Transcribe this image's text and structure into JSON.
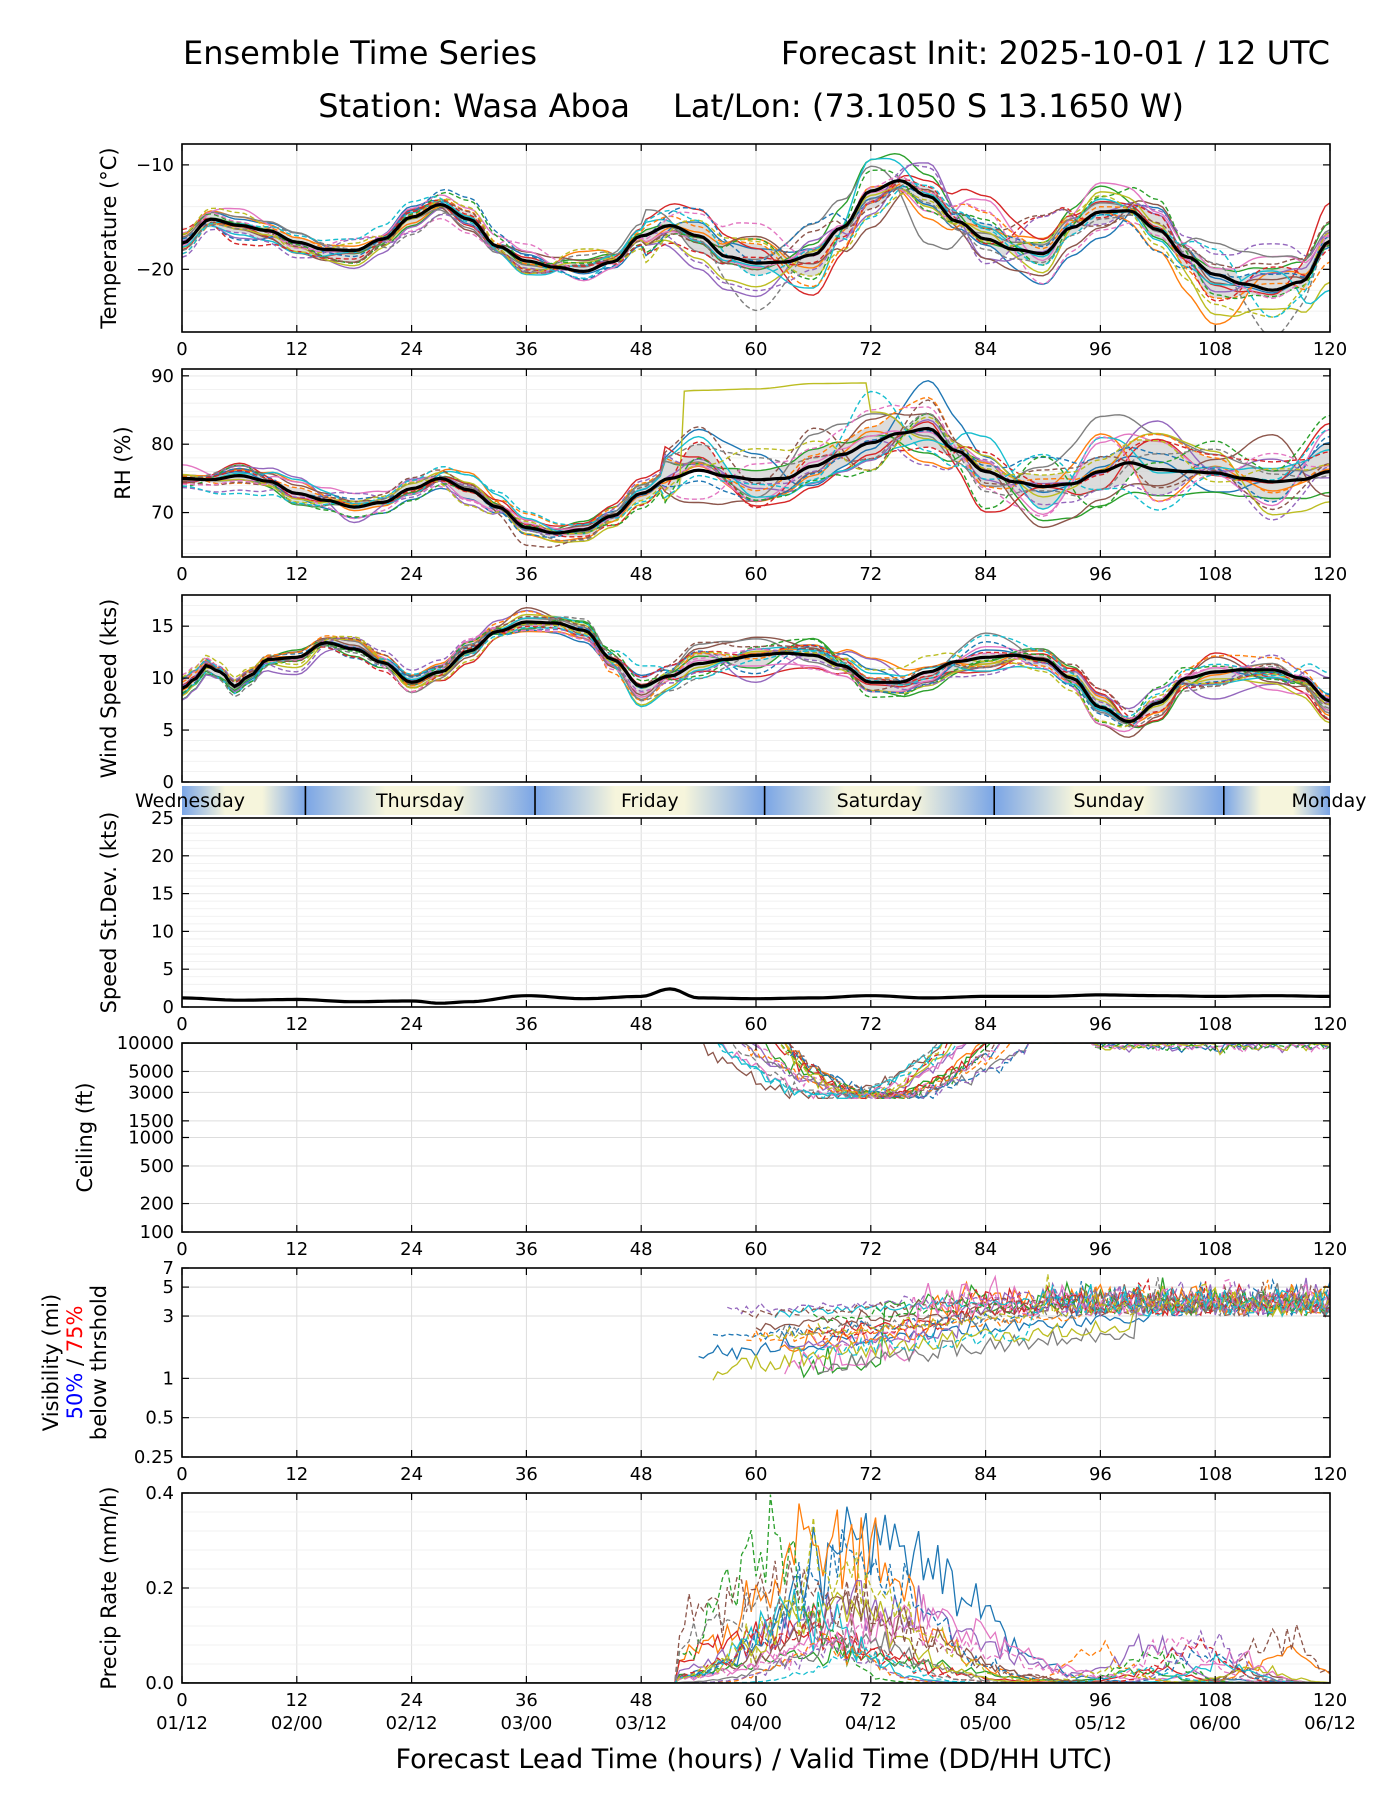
{
  "title": {
    "left": "Ensemble Time Series",
    "right": "Forecast Init: 2025-10-01 / 12 UTC",
    "station": "Station: Wasa Aboa",
    "latlon": "Lat/Lon: (73.1050 S 13.1650 W)"
  },
  "colors": {
    "members": [
      "#1f77b4",
      "#ff7f0e",
      "#2ca02c",
      "#d62728",
      "#9467bd",
      "#8c564b",
      "#e377c2",
      "#7f7f7f",
      "#bcbd22",
      "#17becf"
    ],
    "mean": "#000000",
    "spread": "#d0d0d0",
    "grid": "#dddddd",
    "day_blue": "#7aa5e6",
    "day_cream": "#f6f5dc",
    "vis50": "#0000ff",
    "vis75": "#ff0000"
  },
  "x_axis": {
    "label": "Forecast Lead Time (hours) / Valid Time (DD/HH UTC)",
    "range": [
      0,
      120
    ],
    "ticks": [
      0,
      12,
      24,
      36,
      48,
      60,
      72,
      84,
      96,
      108,
      120
    ],
    "valid_times": [
      "01/12",
      "02/00",
      "02/12",
      "03/00",
      "03/12",
      "04/00",
      "04/12",
      "05/00",
      "05/12",
      "06/00",
      "06/12"
    ]
  },
  "day_strip": {
    "days": [
      {
        "name": "Wednesday",
        "start": 0,
        "end": 12.9
      },
      {
        "name": "Thursday",
        "start": 12.9,
        "end": 36.9
      },
      {
        "name": "Friday",
        "start": 36.9,
        "end": 60.9
      },
      {
        "name": "Saturday",
        "start": 60.9,
        "end": 84.9
      },
      {
        "name": "Sunday",
        "start": 84.9,
        "end": 108.9
      },
      {
        "name": "Monday",
        "start": 108.9,
        "end": 120
      }
    ]
  },
  "chart_data": [
    {
      "id": "temperature",
      "type": "line",
      "ylabel": "Temperature (°C)",
      "scale": "linear",
      "ylim": [
        -26,
        -8
      ],
      "yticks": [
        -10,
        -20
      ],
      "ytick_labels": [
        "−10",
        "−20"
      ],
      "members": 20,
      "mean": {
        "x": [
          0,
          3,
          6,
          9,
          12,
          15,
          18,
          21,
          24,
          27,
          30,
          33,
          36,
          39,
          42,
          45,
          48,
          51,
          54,
          57,
          60,
          63,
          66,
          69,
          72,
          75,
          78,
          81,
          84,
          87,
          90,
          93,
          96,
          99,
          102,
          105,
          108,
          111,
          114,
          117,
          120
        ],
        "y": [
          -17.5,
          -15.2,
          -15.8,
          -16.3,
          -17.4,
          -18.1,
          -18.2,
          -17.1,
          -15.0,
          -13.8,
          -15.2,
          -17.8,
          -19.2,
          -19.8,
          -20.2,
          -19.3,
          -16.8,
          -15.8,
          -16.8,
          -18.8,
          -19.4,
          -19.3,
          -18.6,
          -16.0,
          -12.5,
          -11.5,
          -13.0,
          -15.4,
          -17.1,
          -18.1,
          -18.5,
          -16.0,
          -14.5,
          -14.4,
          -16.2,
          -18.8,
          -20.5,
          -21.4,
          -22.0,
          -21.2,
          -17.3
        ]
      }
    },
    {
      "id": "rh",
      "type": "line",
      "ylabel": "RH (%)",
      "scale": "linear",
      "ylim": [
        63.5,
        91
      ],
      "yticks": [
        70,
        80,
        90
      ],
      "members": 20,
      "mean": {
        "x": [
          0,
          3,
          6,
          9,
          12,
          15,
          18,
          21,
          24,
          27,
          30,
          33,
          36,
          39,
          42,
          45,
          48,
          51,
          54,
          57,
          60,
          63,
          66,
          69,
          72,
          75,
          78,
          81,
          84,
          87,
          90,
          93,
          96,
          99,
          102,
          105,
          108,
          111,
          114,
          117,
          120
        ],
        "y": [
          75.0,
          74.8,
          75.4,
          74.6,
          72.8,
          71.8,
          70.8,
          71.5,
          73.5,
          75.0,
          73.3,
          70.8,
          67.8,
          67.0,
          67.5,
          69.5,
          72.8,
          75.0,
          76.2,
          75.3,
          74.8,
          75.0,
          76.8,
          78.5,
          80.2,
          81.6,
          82.3,
          79.0,
          76.0,
          74.5,
          73.8,
          74.2,
          76.0,
          77.3,
          76.3,
          76.0,
          75.8,
          75.0,
          74.5,
          74.8,
          76.0
        ]
      }
    },
    {
      "id": "wind_speed",
      "type": "line",
      "ylabel": "Wind Speed (kts)",
      "scale": "linear",
      "ylim": [
        0,
        18
      ],
      "yticks": [
        0,
        5,
        10,
        15
      ],
      "members": 20,
      "mean": {
        "x": [
          0,
          1.5,
          2.5,
          4,
          5.5,
          7,
          9,
          12,
          15,
          18,
          21,
          24,
          27,
          30,
          33,
          36,
          39,
          42,
          45,
          48,
          51,
          54,
          57,
          60,
          63,
          66,
          69,
          72,
          75,
          78,
          81,
          84,
          87,
          90,
          93,
          96,
          99,
          102,
          105,
          108,
          111,
          114,
          117,
          120
        ],
        "y": [
          9.0,
          10.0,
          11.2,
          10.6,
          9.2,
          10.2,
          11.8,
          12.0,
          13.4,
          12.8,
          11.5,
          9.6,
          10.6,
          12.6,
          14.5,
          15.4,
          15.3,
          14.6,
          11.8,
          9.2,
          10.2,
          11.4,
          11.8,
          12.2,
          12.4,
          12.2,
          11.2,
          9.6,
          9.6,
          10.6,
          11.6,
          12.0,
          12.2,
          11.8,
          10.0,
          7.2,
          5.8,
          7.6,
          10.0,
          10.6,
          10.8,
          10.8,
          10.0,
          7.8
        ]
      }
    },
    {
      "id": "speed_stdev",
      "type": "line",
      "ylabel": "Speed St.Dev. (kts)",
      "scale": "linear",
      "ylim": [
        0,
        25
      ],
      "yticks": [
        0,
        5,
        10,
        15,
        20,
        25
      ],
      "mean": {
        "x": [
          0,
          6,
          12,
          18,
          24,
          27,
          30,
          36,
          42,
          48,
          51,
          54,
          60,
          66,
          72,
          78,
          84,
          90,
          96,
          102,
          108,
          114,
          120
        ],
        "y": [
          1.2,
          0.9,
          1.0,
          0.7,
          0.8,
          0.5,
          0.7,
          1.5,
          1.1,
          1.4,
          2.4,
          1.2,
          1.1,
          1.2,
          1.5,
          1.2,
          1.4,
          1.4,
          1.6,
          1.5,
          1.4,
          1.5,
          1.4
        ]
      }
    },
    {
      "id": "ceiling",
      "type": "line",
      "ylabel": "Ceiling (ft)",
      "scale": "log",
      "ylim": [
        100,
        10000
      ],
      "yticks": [
        100,
        200,
        500,
        1000,
        1500,
        3000,
        5000,
        10000
      ],
      "members": 20
    },
    {
      "id": "visibility",
      "type": "line",
      "ylabel": "Visibility (mi)",
      "ylabel_pct50": "50%",
      "ylabel_sep": " / ",
      "ylabel_pct75": "75%",
      "ylabel_sub": "below thrshold",
      "scale": "log",
      "ylim": [
        0.25,
        7
      ],
      "yticks": [
        0.25,
        0.5,
        1,
        3,
        5,
        7
      ],
      "members": 20
    },
    {
      "id": "precip_rate",
      "type": "line",
      "ylabel": "Precip Rate (mm/h)",
      "scale": "linear",
      "ylim": [
        0,
        0.4
      ],
      "yticks": [
        0.0,
        0.2,
        0.4
      ],
      "ytick_labels": [
        "0.0",
        "0.2",
        "0.4"
      ],
      "members": 20
    }
  ]
}
